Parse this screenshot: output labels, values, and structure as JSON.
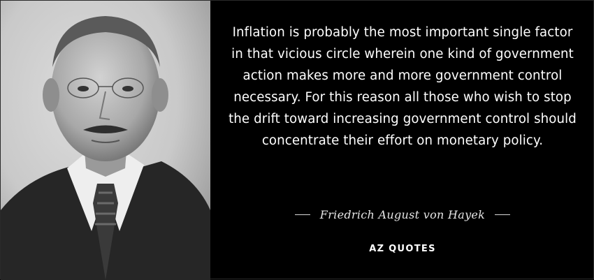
{
  "quote": {
    "text": "Inflation is probably the most important single factor in that vicious circle wherein one kind of government action makes more and more government control necessary. For this reason all those who wish to stop the drift toward increasing government control should concentrate their effort on monetary policy.",
    "author": "Friedrich August von Hayek"
  },
  "brand": {
    "logo_text": "AZ QUOTES"
  },
  "colors": {
    "background": "#000000",
    "text": "#ffffff"
  }
}
